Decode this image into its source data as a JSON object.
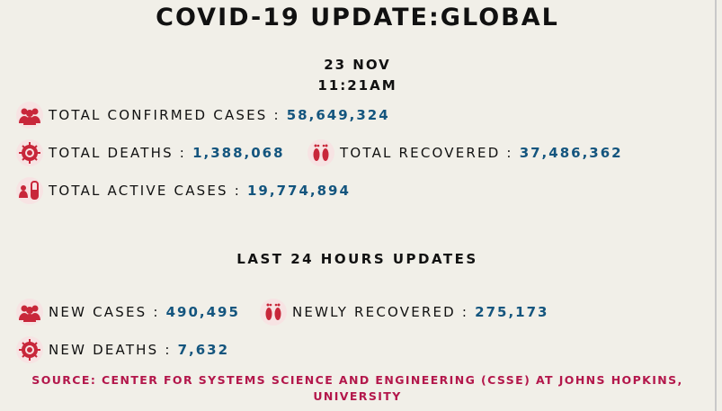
{
  "header": {
    "title": "COVID-19 UPDATE:GLOBAL",
    "date": "23 NOV",
    "time": "11:21AM"
  },
  "stats": [
    {
      "label": "TOTAL CONFIRMED CASES :",
      "value": "58,649,324"
    },
    {
      "label": "TOTAL DEATHS :",
      "value": "1,388,068"
    },
    {
      "label": "TOTAL RECOVERED :",
      "value": "37,486,362"
    },
    {
      "label": "TOTAL ACTIVE CASES :",
      "value": "19,774,894"
    }
  ],
  "last24": {
    "heading": "LAST 24 HOURS UPDATES",
    "stats": [
      {
        "label": "NEW CASES :",
        "value": "490,495"
      },
      {
        "label": "NEWLY RECOVERED :",
        "value": "275,173"
      },
      {
        "label": "NEW DEATHS :",
        "value": "7,632"
      }
    ]
  },
  "source": "SOURCE: CENTER FOR SYSTEMS SCIENCE AND ENGINEERING (CSSE) AT JOHNS HOPKINS, UNIVERSITY"
}
